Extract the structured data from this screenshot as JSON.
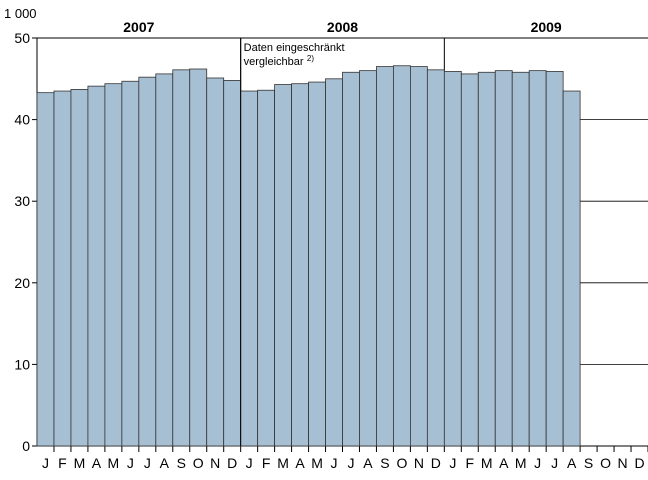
{
  "chart_data": {
    "type": "bar",
    "unit_label": "1 000",
    "years": [
      "2007",
      "2008",
      "2009"
    ],
    "annotation": [
      "Daten eingeschränkt",
      "vergleichbar"
    ],
    "annotation_note": "2)",
    "categories": [
      "J",
      "F",
      "M",
      "A",
      "M",
      "J",
      "J",
      "A",
      "S",
      "O",
      "N",
      "D",
      "J",
      "F",
      "M",
      "A",
      "M",
      "J",
      "J",
      "A",
      "S",
      "O",
      "N",
      "D",
      "J",
      "F",
      "M",
      "A",
      "M",
      "J",
      "J",
      "A",
      "S",
      "O",
      "N",
      "D"
    ],
    "values": [
      43.3,
      43.5,
      43.7,
      44.1,
      44.4,
      44.7,
      45.2,
      45.6,
      46.1,
      46.2,
      45.1,
      44.8,
      43.5,
      43.6,
      44.3,
      44.4,
      44.6,
      45.0,
      45.8,
      46.0,
      46.5,
      46.6,
      46.5,
      46.1,
      45.9,
      45.6,
      45.8,
      46.0,
      45.8,
      46.0,
      45.9,
      43.5,
      null,
      null,
      null,
      null
    ],
    "color": "#a7bfd3",
    "ylim": [
      0,
      50
    ],
    "yticks": [
      0,
      10,
      20,
      30,
      40,
      50
    ],
    "grid": true
  }
}
